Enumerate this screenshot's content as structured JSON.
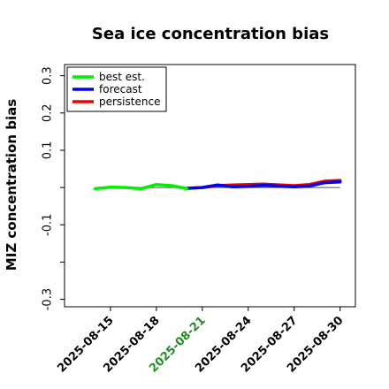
{
  "chart_data": {
    "type": "line",
    "title": "Sea ice concentration bias",
    "xlabel": "",
    "ylabel": "MIZ concentration bias",
    "ylim": [
      -0.32,
      0.33
    ],
    "yticks": [
      0.3,
      0.2,
      0.1,
      -0.1,
      -0.3
    ],
    "yticks_unlabeled": [
      0.0,
      -0.2
    ],
    "ytick_labels": [
      "0.3",
      "0.2",
      "0.1",
      "-0.1",
      "-0.3"
    ],
    "xlim": [
      "2025-08-12",
      "2025-08-31"
    ],
    "xticks": [
      "2025-08-15",
      "2025-08-18",
      "2025-08-21",
      "2025-08-24",
      "2025-08-27",
      "2025-08-30"
    ],
    "xtick_colors": [
      "#000000",
      "#000000",
      "#228b22",
      "#000000",
      "#000000",
      "#000000"
    ],
    "reference_line": {
      "y": 0.0,
      "color": "#555555"
    },
    "legend": {
      "position": "top-left",
      "frame": true
    },
    "series": [
      {
        "name": "best est.",
        "color": "#00ee00",
        "x": [
          "2025-08-14",
          "2025-08-15",
          "2025-08-16",
          "2025-08-17",
          "2025-08-18",
          "2025-08-19",
          "2025-08-20"
        ],
        "y": [
          -0.003,
          0.001,
          0.0,
          -0.003,
          0.008,
          0.005,
          -0.003
        ]
      },
      {
        "name": "forecast",
        "color": "#0000ee",
        "x": [
          "2025-08-20",
          "2025-08-21",
          "2025-08-22",
          "2025-08-23",
          "2025-08-24",
          "2025-08-25",
          "2025-08-27",
          "2025-08-28",
          "2025-08-29",
          "2025-08-30"
        ],
        "y": [
          -0.002,
          0.0,
          0.007,
          0.002,
          0.003,
          0.006,
          0.002,
          0.004,
          0.013,
          0.015
        ]
      },
      {
        "name": "persistence",
        "color": "#ee0000",
        "x": [
          "2025-08-20",
          "2025-08-21",
          "2025-08-22",
          "2025-08-23",
          "2025-08-24",
          "2025-08-25",
          "2025-08-27",
          "2025-08-28",
          "2025-08-29",
          "2025-08-30"
        ],
        "y": [
          -0.002,
          0.0,
          0.005,
          0.007,
          0.008,
          0.009,
          0.005,
          0.008,
          0.017,
          0.019
        ]
      }
    ]
  }
}
